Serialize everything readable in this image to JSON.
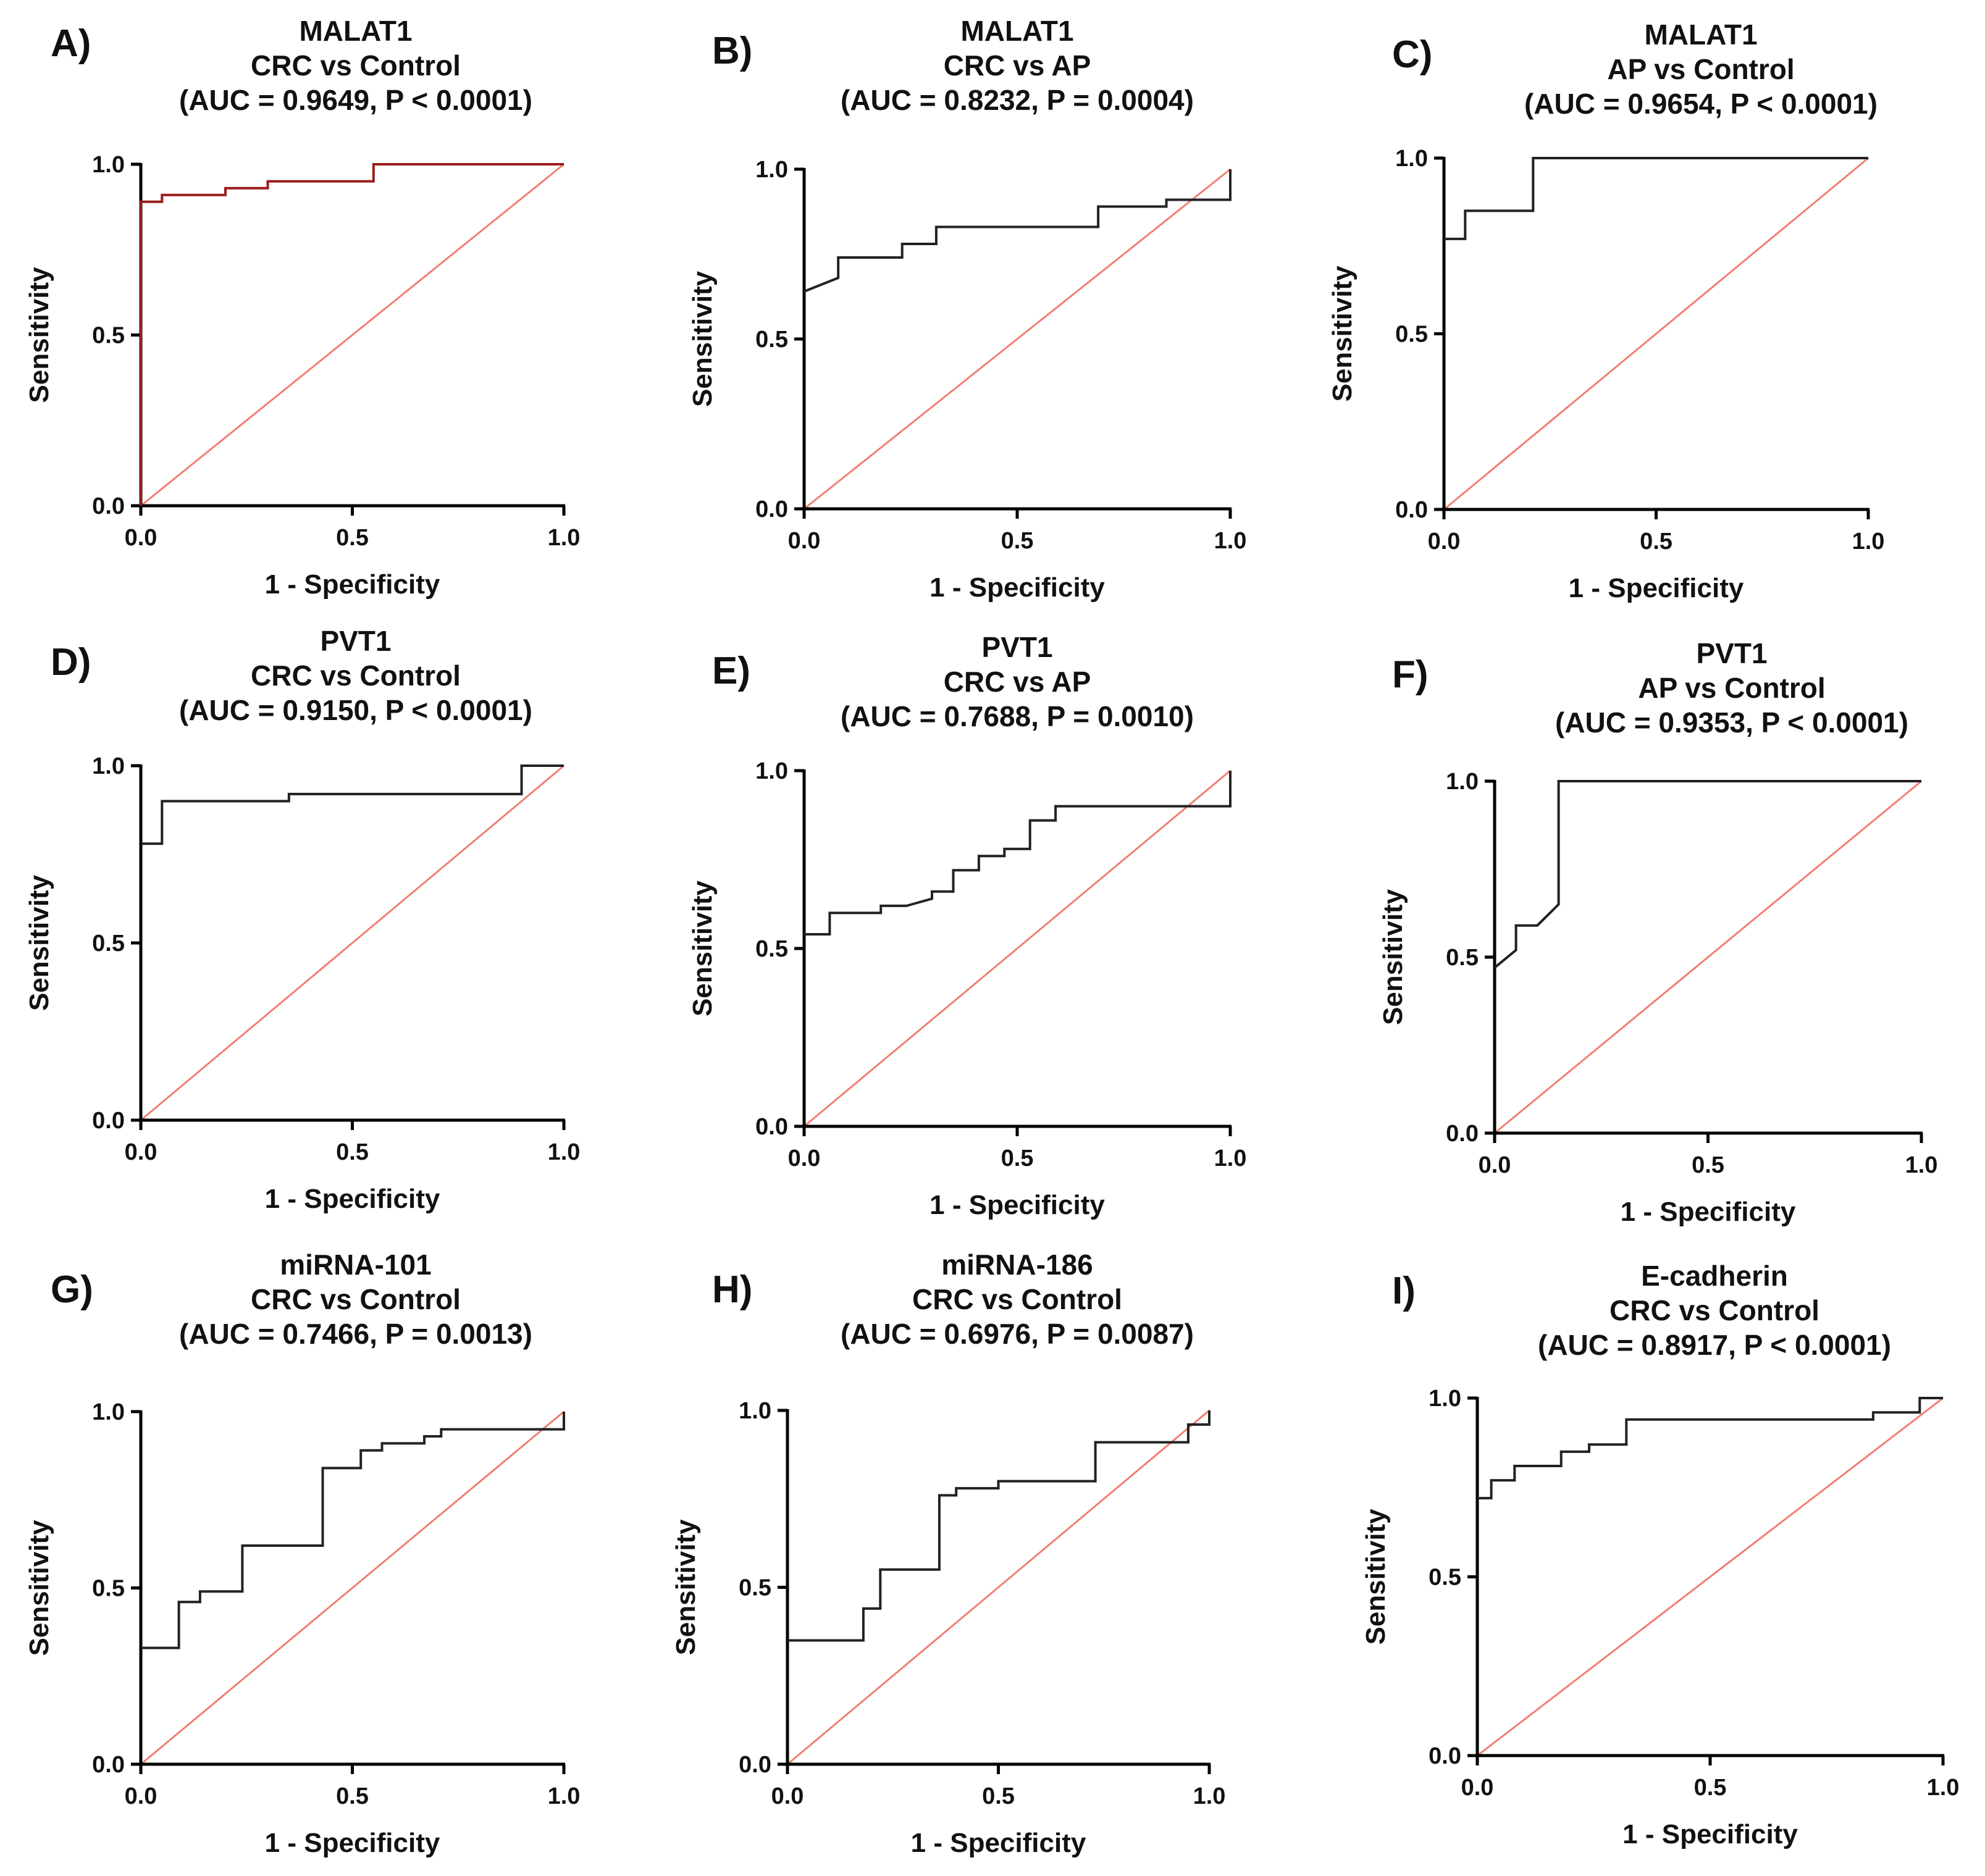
{
  "colors": {
    "reference_line": "#f07f70",
    "curve_default": "#222222",
    "curve_red": "#9b1c1c"
  },
  "chart_data": [
    {
      "panel_label": "A)",
      "title_lines": [
        "MALAT1",
        "CRC vs Control",
        "(AUC = 0.9649, P < 0.0001)"
      ],
      "type": "line",
      "xlabel": "1 - Specificity",
      "ylabel": "Sensitivity",
      "xlim": [
        0,
        1
      ],
      "ylim": [
        0,
        1
      ],
      "xticks": [
        "0.0",
        "0.5",
        "1.0"
      ],
      "yticks": [
        "0.0",
        "0.5",
        "1.0"
      ],
      "curve_color": "#9b1c1c",
      "reference_line": [
        [
          0,
          0
        ],
        [
          1,
          1
        ]
      ],
      "x": [
        0,
        0,
        0.05,
        0.05,
        0.2,
        0.2,
        0.3,
        0.3,
        0.55,
        0.55,
        1.0
      ],
      "y": [
        0,
        0.89,
        0.89,
        0.91,
        0.91,
        0.93,
        0.93,
        0.95,
        0.95,
        1.0,
        1.0
      ]
    },
    {
      "panel_label": "B)",
      "title_lines": [
        "MALAT1",
        "CRC vs AP",
        "(AUC = 0.8232, P = 0.0004)"
      ],
      "type": "line",
      "xlabel": "1 - Specificity",
      "ylabel": "Sensitivity",
      "xlim": [
        0,
        1
      ],
      "ylim": [
        0,
        1
      ],
      "xticks": [
        "0.0",
        "0.5",
        "1.0"
      ],
      "yticks": [
        "0.0",
        "0.5",
        "1.0"
      ],
      "curve_color": "#222222",
      "reference_line": [
        [
          0,
          0
        ],
        [
          1,
          1
        ]
      ],
      "x": [
        0,
        0.08,
        0.08,
        0.23,
        0.23,
        0.31,
        0.31,
        0.69,
        0.69,
        0.85,
        0.85,
        1.0,
        1.0
      ],
      "y": [
        0.64,
        0.68,
        0.74,
        0.74,
        0.78,
        0.78,
        0.83,
        0.83,
        0.89,
        0.89,
        0.91,
        0.91,
        1.0
      ]
    },
    {
      "panel_label": "C)",
      "title_lines": [
        "MALAT1",
        "AP vs Control",
        "(AUC = 0.9654, P < 0.0001)"
      ],
      "type": "line",
      "xlabel": "1 - Specificity",
      "ylabel": "Sensitivity",
      "xlim": [
        0,
        1
      ],
      "ylim": [
        0,
        1
      ],
      "xticks": [
        "0.0",
        "0.5",
        "1.0"
      ],
      "yticks": [
        "0.0",
        "0.5",
        "1.0"
      ],
      "curve_color": "#222222",
      "reference_line": [
        [
          0,
          0
        ],
        [
          1,
          1
        ]
      ],
      "x": [
        0,
        0.05,
        0.05,
        0.21,
        0.21,
        1.0
      ],
      "y": [
        0.77,
        0.77,
        0.85,
        0.85,
        1.0,
        1.0
      ]
    },
    {
      "panel_label": "D)",
      "title_lines": [
        "PVT1",
        "CRC vs Control",
        "(AUC = 0.9150, P < 0.0001)"
      ],
      "type": "line",
      "xlabel": "1 - Specificity",
      "ylabel": "Sensitivity",
      "xlim": [
        0,
        1
      ],
      "ylim": [
        0,
        1
      ],
      "xticks": [
        "0.0",
        "0.5",
        "1.0"
      ],
      "yticks": [
        "0.0",
        "0.5",
        "1.0"
      ],
      "curve_color": "#222222",
      "reference_line": [
        [
          0,
          0
        ],
        [
          1,
          1
        ]
      ],
      "x": [
        0,
        0.05,
        0.05,
        0.35,
        0.35,
        0.9,
        0.9,
        1.0
      ],
      "y": [
        0.78,
        0.78,
        0.9,
        0.9,
        0.92,
        0.92,
        1.0,
        1.0
      ]
    },
    {
      "panel_label": "E)",
      "title_lines": [
        "PVT1",
        "CRC vs AP",
        "(AUC = 0.7688, P = 0.0010)"
      ],
      "type": "line",
      "xlabel": "1 - Specificity",
      "ylabel": "Sensitivity",
      "xlim": [
        0,
        1
      ],
      "ylim": [
        0,
        1
      ],
      "xticks": [
        "0.0",
        "0.5",
        "1.0"
      ],
      "yticks": [
        "0.0",
        "0.5",
        "1.0"
      ],
      "curve_color": "#222222",
      "reference_line": [
        [
          0,
          0
        ],
        [
          1,
          1
        ]
      ],
      "x": [
        0,
        0.06,
        0.06,
        0.18,
        0.18,
        0.24,
        0.3,
        0.3,
        0.35,
        0.35,
        0.41,
        0.41,
        0.47,
        0.47,
        0.53,
        0.53,
        0.59,
        0.59,
        1.0,
        1.0
      ],
      "y": [
        0.54,
        0.54,
        0.6,
        0.6,
        0.62,
        0.62,
        0.64,
        0.66,
        0.66,
        0.72,
        0.72,
        0.76,
        0.76,
        0.78,
        0.78,
        0.86,
        0.86,
        0.9,
        0.9,
        1.0
      ]
    },
    {
      "panel_label": "F)",
      "title_lines": [
        "PVT1",
        "AP vs Control",
        "(AUC = 0.9353, P < 0.0001)"
      ],
      "type": "line",
      "xlabel": "1 - Specificity",
      "ylabel": "Sensitivity",
      "xlim": [
        0,
        1
      ],
      "ylim": [
        0,
        1
      ],
      "xticks": [
        "0.0",
        "0.5",
        "1.0"
      ],
      "yticks": [
        "0.0",
        "0.5",
        "1.0"
      ],
      "curve_color": "#222222",
      "reference_line": [
        [
          0,
          0
        ],
        [
          1,
          1
        ]
      ],
      "x": [
        0,
        0.05,
        0.05,
        0.1,
        0.15,
        0.15,
        1.0
      ],
      "y": [
        0.47,
        0.52,
        0.59,
        0.59,
        0.65,
        1.0,
        1.0
      ]
    },
    {
      "panel_label": "G)",
      "title_lines": [
        "miRNA-101",
        "CRC vs Control",
        "(AUC = 0.7466, P = 0.0013)"
      ],
      "type": "line",
      "xlabel": "1 - Specificity",
      "ylabel": "Sensitivity",
      "xlim": [
        0,
        1
      ],
      "ylim": [
        0,
        1
      ],
      "xticks": [
        "0.0",
        "0.5",
        "1.0"
      ],
      "yticks": [
        "0.0",
        "0.5",
        "1.0"
      ],
      "curve_color": "#222222",
      "reference_line": [
        [
          0,
          0
        ],
        [
          1,
          1
        ]
      ],
      "x": [
        0,
        0.09,
        0.09,
        0.14,
        0.14,
        0.24,
        0.24,
        0.43,
        0.43,
        0.52,
        0.52,
        0.57,
        0.57,
        0.67,
        0.67,
        0.71,
        0.71,
        1.0,
        1.0
      ],
      "y": [
        0.33,
        0.33,
        0.46,
        0.46,
        0.49,
        0.49,
        0.62,
        0.62,
        0.84,
        0.84,
        0.89,
        0.89,
        0.91,
        0.91,
        0.93,
        0.93,
        0.95,
        0.95,
        1.0
      ]
    },
    {
      "panel_label": "H)",
      "title_lines": [
        "miRNA-186",
        "CRC vs Control",
        "(AUC = 0.6976, P = 0.0087)"
      ],
      "type": "line",
      "xlabel": "1 - Specificity",
      "ylabel": "Sensitivity",
      "xlim": [
        0,
        1
      ],
      "ylim": [
        0,
        1
      ],
      "xticks": [
        "0.0",
        "0.5",
        "1.0"
      ],
      "yticks": [
        "0.0",
        "0.5",
        "1.0"
      ],
      "curve_color": "#222222",
      "reference_line": [
        [
          0,
          0
        ],
        [
          1,
          1
        ]
      ],
      "x": [
        0,
        0.18,
        0.18,
        0.22,
        0.22,
        0.36,
        0.36,
        0.4,
        0.4,
        0.5,
        0.5,
        0.73,
        0.73,
        0.95,
        0.95,
        1.0,
        1.0
      ],
      "y": [
        0.35,
        0.35,
        0.44,
        0.44,
        0.55,
        0.55,
        0.76,
        0.76,
        0.78,
        0.78,
        0.8,
        0.8,
        0.91,
        0.91,
        0.96,
        0.96,
        1.0
      ]
    },
    {
      "panel_label": "I)",
      "title_lines": [
        "E-cadherin",
        "CRC vs Control",
        "(AUC = 0.8917, P < 0.0001)"
      ],
      "type": "line",
      "xlabel": "1 - Specificity",
      "ylabel": "Sensitivity",
      "xlim": [
        0,
        1
      ],
      "ylim": [
        0,
        1
      ],
      "xticks": [
        "0.0",
        "0.5",
        "1.0"
      ],
      "yticks": [
        "0.0",
        "0.5",
        "1.0"
      ],
      "curve_color": "#222222",
      "reference_line": [
        [
          0,
          0
        ],
        [
          1,
          1
        ]
      ],
      "x": [
        0,
        0.03,
        0.03,
        0.08,
        0.08,
        0.18,
        0.18,
        0.24,
        0.24,
        0.32,
        0.32,
        0.85,
        0.85,
        0.95,
        0.95,
        1.0
      ],
      "y": [
        0.72,
        0.72,
        0.77,
        0.77,
        0.81,
        0.81,
        0.85,
        0.85,
        0.87,
        0.87,
        0.94,
        0.94,
        0.96,
        0.96,
        1.0,
        1.0
      ]
    }
  ]
}
